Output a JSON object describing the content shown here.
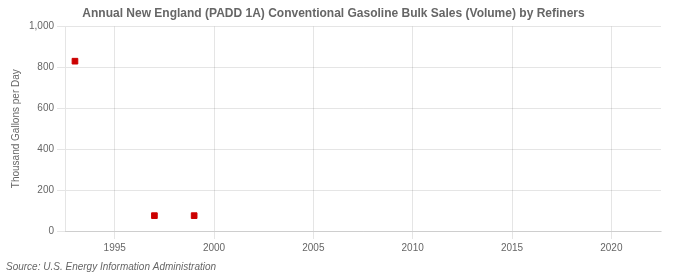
{
  "chart_data": {
    "type": "scatter",
    "title": "Annual New England (PADD 1A) Conventional Gasoline Bulk Sales (Volume) by Refiners",
    "ylabel": "Thousand Gallons per Day",
    "annotation": "Source: U.S. Energy Information Administration",
    "x": [
      1993,
      1997,
      1999
    ],
    "values": [
      830,
      75,
      75
    ],
    "color": "#cc0000",
    "marker": "square",
    "xlim": [
      1992.5,
      2022.5
    ],
    "ylim": [
      0,
      1000
    ],
    "xticks": [
      1995,
      2000,
      2005,
      2010,
      2015,
      2020
    ],
    "yticks": [
      0,
      200,
      400,
      600,
      800,
      {
        "value": 1000,
        "label": "1,000"
      }
    ],
    "grid": true
  }
}
